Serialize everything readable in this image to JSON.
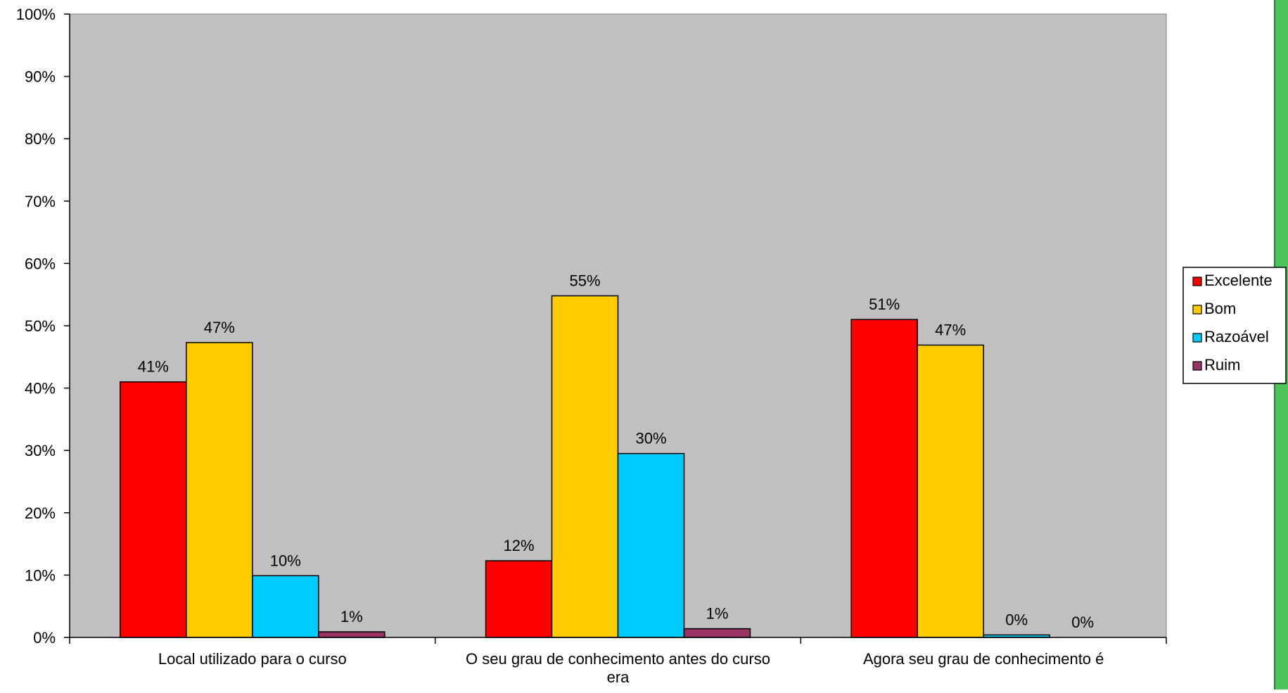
{
  "chart_data": {
    "type": "bar",
    "title": "",
    "xlabel": "",
    "ylabel": "",
    "ylim": [
      0,
      100
    ],
    "y_ticks": [
      0,
      10,
      20,
      30,
      40,
      50,
      60,
      70,
      80,
      90,
      100
    ],
    "y_tick_labels": [
      "0%",
      "10%",
      "20%",
      "30%",
      "40%",
      "50%",
      "60%",
      "70%",
      "80%",
      "90%",
      "100%"
    ],
    "grid": false,
    "legend_position": "right",
    "categories": [
      [
        "Local utilizado para o curso"
      ],
      [
        "O seu grau de conhecimento antes do curso",
        "era"
      ],
      [
        "Agora seu grau de conhecimento é"
      ]
    ],
    "series": [
      {
        "name": "Excelente",
        "color": "#ff0000",
        "values": [
          41,
          12.3,
          51
        ],
        "labels": [
          "41%",
          "12%",
          "51%"
        ]
      },
      {
        "name": "Bom",
        "color": "#ffcc00",
        "values": [
          47.3,
          54.8,
          46.9
        ],
        "labels": [
          "47%",
          "55%",
          "47%"
        ]
      },
      {
        "name": "Razoável",
        "color": "#00ccff",
        "values": [
          9.9,
          29.5,
          0.4
        ],
        "labels": [
          "10%",
          "30%",
          "0%"
        ]
      },
      {
        "name": "Ruim",
        "color": "#993366",
        "values": [
          0.9,
          1.4,
          0
        ],
        "labels": [
          "1%",
          "1%",
          "0%"
        ]
      }
    ],
    "plot_background": "#c0c0c0",
    "decoration_color": "#4fc45a"
  }
}
